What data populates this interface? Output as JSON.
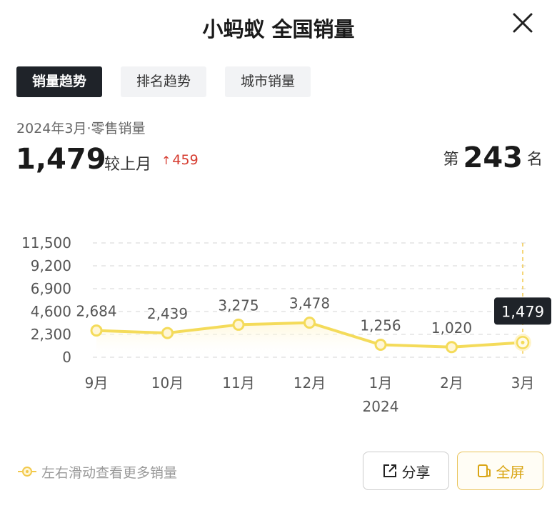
{
  "header": {
    "title": "小蚂蚁 全国销量",
    "close_icon": "close-icon"
  },
  "tabs": [
    {
      "label": "销量趋势",
      "active": true
    },
    {
      "label": "排名趋势",
      "active": false
    },
    {
      "label": "城市销量",
      "active": false
    }
  ],
  "summary": {
    "period": "2024年3月·零售销量",
    "value": "1,479",
    "compare_label": "较上月",
    "delta_arrow": "↑",
    "delta": "459",
    "rank_prefix": "第",
    "rank": "243",
    "rank_suffix": "名"
  },
  "colors": {
    "line": "#f4db5a",
    "point_fill": "#fff6d6",
    "tooltip_bg": "#1f2329",
    "delta_up": "#d63b2f",
    "accent": "#d9a514"
  },
  "chart_data": {
    "type": "line",
    "categories": [
      "9月",
      "10月",
      "11月",
      "12月",
      "1月",
      "2月",
      "3月"
    ],
    "year_label": "2024",
    "values": [
      2684,
      2439,
      3275,
      3478,
      1256,
      1020,
      1479
    ],
    "labels": [
      "2,684",
      "2,439",
      "3,275",
      "3,478",
      "1,256",
      "1,020",
      "1,479"
    ],
    "y_ticks": [
      0,
      2300,
      4600,
      6900,
      9200,
      11500
    ],
    "y_tick_labels": [
      "0",
      "2,300",
      "4,600",
      "6,900",
      "9,200",
      "11,500"
    ],
    "ylim": [
      0,
      11500
    ],
    "grid": true,
    "highlight_index": 6
  },
  "footer": {
    "hint": "左右滑动查看更多销量",
    "hint_icon": "swipe-hint-icon",
    "share_label": "分享",
    "share_icon": "share-icon",
    "fullscreen_label": "全屏",
    "fullscreen_icon": "fullscreen-icon"
  }
}
